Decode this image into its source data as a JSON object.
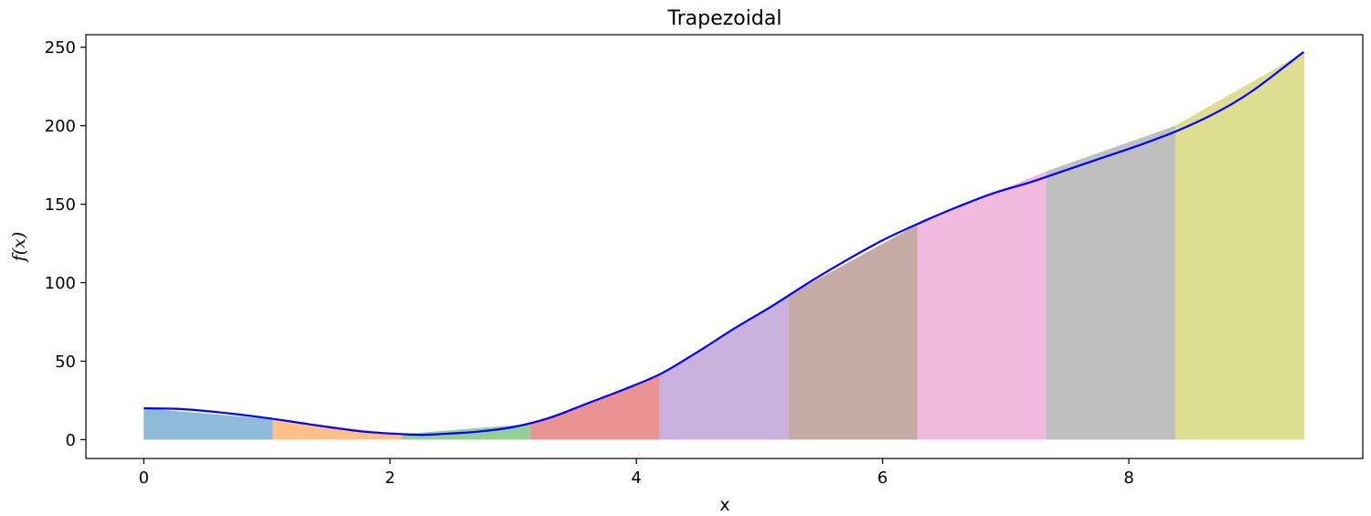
{
  "chart_data": {
    "type": "area",
    "title": "Trapezoidal",
    "xlabel": "x",
    "ylabel": "f(x)",
    "xlim": [
      -0.47,
      9.9
    ],
    "ylim": [
      -12,
      258
    ],
    "xticks": [
      0,
      2,
      4,
      6,
      8
    ],
    "yticks": [
      0,
      50,
      100,
      150,
      200,
      250
    ],
    "grid": false,
    "curve": {
      "color": "#0000ff",
      "x": [
        0,
        0.3,
        0.6,
        0.9,
        1.2,
        1.5,
        1.8,
        2.1,
        2.25,
        2.4,
        2.7,
        3.0,
        3.3,
        3.6,
        3.9,
        4.2,
        4.5,
        4.8,
        5.1,
        5.4,
        5.7,
        6.0,
        6.3,
        6.6,
        6.9,
        7.2,
        7.5,
        7.8,
        8.1,
        8.4,
        8.7,
        9.0,
        9.42
      ],
      "y": [
        20,
        19.5,
        17.5,
        14.8,
        11.5,
        8,
        5,
        3.5,
        3,
        3.5,
        5,
        8,
        14,
        23,
        32,
        42,
        56,
        71,
        85,
        100,
        114,
        127,
        138,
        148,
        157,
        164,
        172,
        180,
        188,
        197,
        208,
        222,
        247
      ]
    },
    "trapezoids": [
      {
        "x": [
          0,
          1.047
        ],
        "y": [
          20,
          13
        ],
        "color": "#1f77b4"
      },
      {
        "x": [
          1.047,
          2.094
        ],
        "y": [
          13,
          3.5
        ],
        "color": "#ff7f0e"
      },
      {
        "x": [
          2.094,
          3.142
        ],
        "y": [
          3.5,
          10
        ],
        "color": "#2ca02c"
      },
      {
        "x": [
          3.142,
          4.189
        ],
        "y": [
          10,
          41
        ],
        "color": "#d62728"
      },
      {
        "x": [
          4.189,
          5.236
        ],
        "y": [
          41,
          92
        ],
        "color": "#9467bd"
      },
      {
        "x": [
          5.236,
          6.283
        ],
        "y": [
          92,
          137
        ],
        "color": "#8c564b"
      },
      {
        "x": [
          6.283,
          7.33
        ],
        "y": [
          137,
          171
        ],
        "color": "#e377c2"
      },
      {
        "x": [
          7.33,
          8.378
        ],
        "y": [
          171,
          200
        ],
        "color": "#7f7f7f"
      },
      {
        "x": [
          8.378,
          9.425
        ],
        "y": [
          200,
          247
        ],
        "color": "#bcbd22"
      }
    ],
    "trapezoid_alpha": 0.5
  }
}
